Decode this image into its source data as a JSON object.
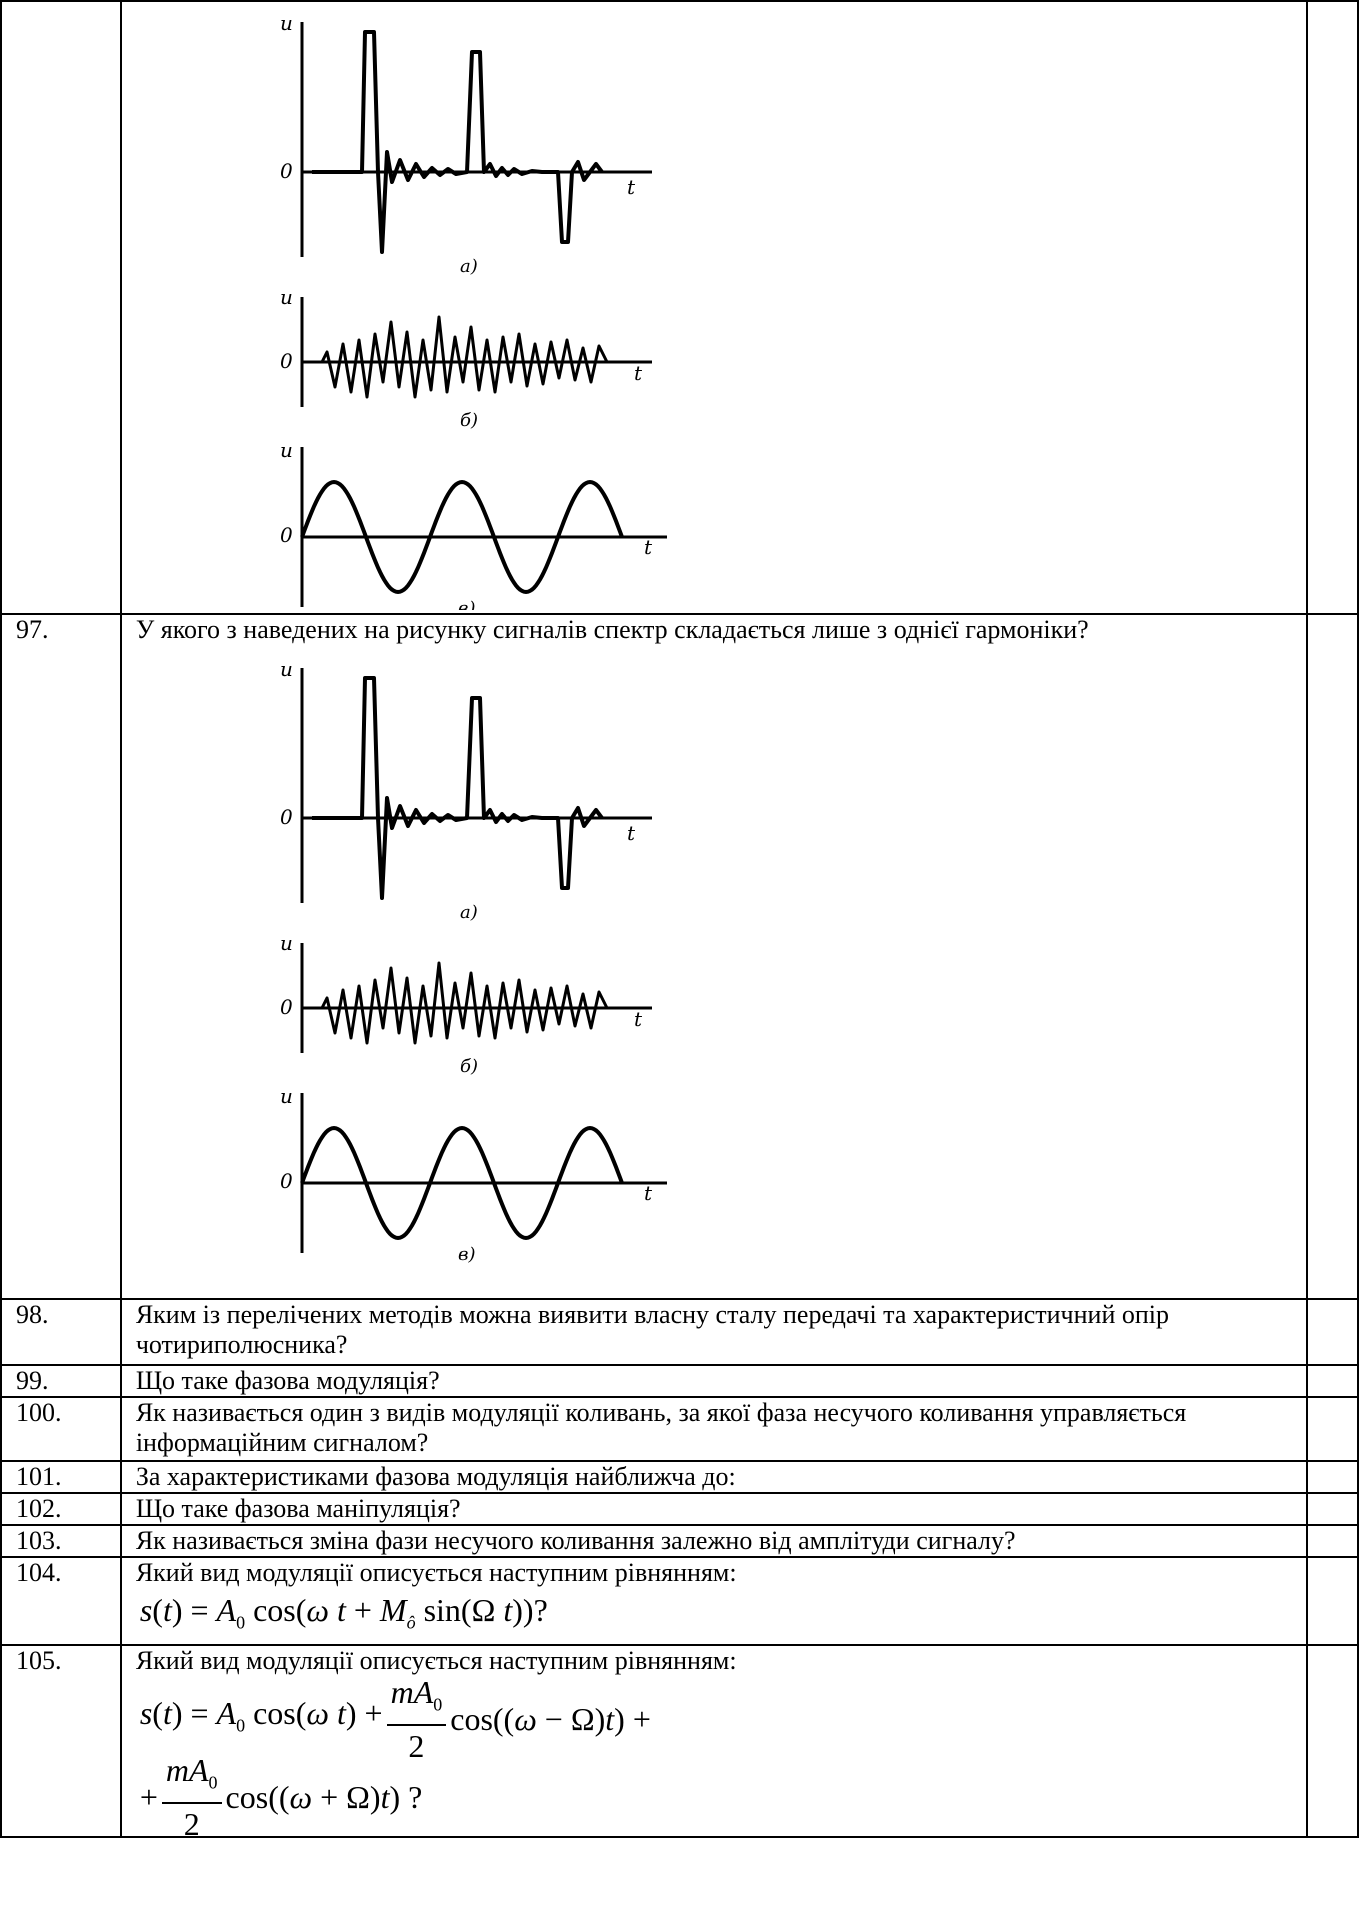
{
  "figure_labels": {
    "axis_u": "u",
    "axis_t": "t",
    "origin": "0",
    "panel_a": "a)",
    "panel_b": "б)",
    "panel_c": "в)"
  },
  "rows": [
    {
      "num": "",
      "text": ""
    },
    {
      "num": "97.",
      "text": "У якого з наведених на рисунку сигналів спектр складається лише з однієї гармоніки?"
    },
    {
      "num": "98.",
      "text": "Яким із перелічених методів можна виявити власну сталу передачі та характеристичний опір чотириполюсника?"
    },
    {
      "num": "99.",
      "text": "Що таке фазова модуляція?"
    },
    {
      "num": "100.",
      "text": "Як називається один з видів модуляції коливань, за якої фаза несучого коливання управляється інформаційним сигналом?"
    },
    {
      "num": "101.",
      "text": "За характеристиками фазова модуляція найближча до:"
    },
    {
      "num": "102.",
      "text": "Що таке фазова маніпуляція?"
    },
    {
      "num": "103.",
      "text": "Як називається зміна фази несучого коливання залежно від амплітуди сигналу?"
    },
    {
      "num": "104.",
      "text": "Який вид модуляції описується наступним рівнянням:"
    },
    {
      "num": "105.",
      "text": "Який вид модуляції описується наступним рівнянням:"
    }
  ]
}
